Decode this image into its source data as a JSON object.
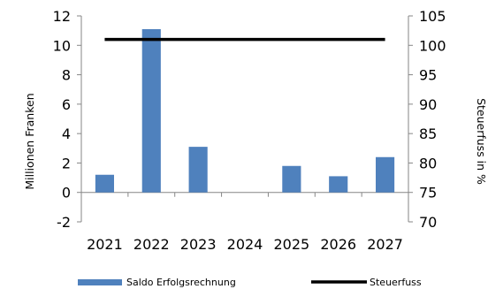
{
  "chart_data": {
    "type": "bar",
    "categories": [
      "2021",
      "2022",
      "2023",
      "2024",
      "2025",
      "2026",
      "2027"
    ],
    "series": [
      {
        "name": "Saldo Erfolgsrechnung",
        "type": "bar",
        "axis": "left",
        "color": "#4F81BD",
        "values": [
          1.2,
          11.1,
          3.1,
          0,
          1.8,
          1.1,
          2.4
        ]
      },
      {
        "name": "Steuerfuss",
        "type": "line",
        "axis": "right",
        "color": "#000000",
        "values": [
          101,
          101,
          101,
          101,
          101,
          101,
          101
        ]
      }
    ],
    "ylabel": "Millionen Franken",
    "ylim": [
      -2,
      12
    ],
    "yticks": [
      "-2",
      "0",
      "2",
      "4",
      "6",
      "8",
      "10",
      "12"
    ],
    "y2label": "Steuerfuss in %",
    "y2lim": [
      70,
      105
    ],
    "y2ticks": [
      "70",
      "75",
      "80",
      "85",
      "90",
      "95",
      "100",
      "105"
    ],
    "grid": false,
    "legend": "bottom"
  }
}
